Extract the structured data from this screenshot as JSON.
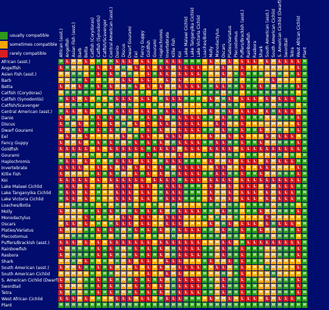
{
  "legend": [
    {
      "label": "usually compatible",
      "color": "#2f9a1c"
    },
    {
      "label": "sometimes compatible",
      "color": "#f5a500"
    },
    {
      "label": "rarely compatible",
      "color": "#d81f1f"
    }
  ],
  "colors": {
    "background": "#000c6e",
    "H": "#2f9a1c",
    "M": "#f5a500",
    "L": "#d81f1f"
  },
  "species": [
    "African (asst.)",
    "Angelfish",
    "Asian Fish (asst.)",
    "Barb",
    "Betta",
    "Catfish (Corydoras)",
    "Catfish (Synodontis)",
    "Catfish/Scavenger",
    "Central American (asst.)",
    "Danio",
    "Discus",
    "Dwarf Gourami",
    "Eel",
    "Fancy Guppy",
    "Goldfish",
    "Gourami",
    "Haplochromis",
    "Invertebrate",
    "Killie Fish",
    "Koi",
    "Lake Malawi Cichlid",
    "Lake Tanganyika Cichlid",
    "Lake Victoria Cichlid",
    "Loaches/Botia",
    "Molly",
    "Monodactylus",
    "Oscars",
    "Platies/Variatus",
    "Plecostomus",
    "Puffers/Brackish (asst.)",
    "Rainbowfish",
    "Rasbora",
    "Shark",
    "South American (asst.)",
    "South American Cichlid",
    "S. American Cichlid (Dwarf)",
    "Swordtail",
    "Tetra",
    "West African Cichlid",
    "Plant"
  ],
  "matrix": [
    "HLMMLMHMHLLLMLLMHLLLHHHMLMMLMLLLMLMLLLLH",
    "LHMMMHLMLMHMLMLMLLMLLLLMMMLMMLMMMMMMMMLH",
    "MMHHMHLHLHMHMMLHLLMLLLLHMMLMHLHHHMMHMHLH",
    "MMHHLHMHMMLLMLLMMLMLMMMHMMMMHMHHMMLMMMMH",
    "LMMLHHLHLMMHLMLMLMMLLLLHHLLHHLHHLHMHHHLH",
    "MHHHHHMHMHHHMHMHMMHMMMMHHHMHHMHHHHHHHHMH",
    "HLLMLMHMHLLLMLLMHLLLHHHMLMHLMLLLMLMLLLHH",
    "MMHHHHMHMHMHMHMHMMHMMMMHHHMHHMHHHHMHHHMH",
    "HLLMLMHMHLLLMLLMHLLLMMMMLMHLMLLLMLHLLLMH",
    "LMHMMHLHLHMHMHLHLMHLLLLHHMLHHLHHHMMHHHLH",
    "LHMLMHLMLMHMLMLMLLMLLLLMMLLMMLMMMMMMMMLH",
    "LMHLHHLHLHMHMHLHLMMLLLLHHMLHHLHHLMMHMHLH",
    "MLMMLMMMMMLMHLLMMLLLMMMMLMMLMLMMMLMLLLMH",
    "LMMLMHLHLHMHLHLHLMHLLLLHHLLHHLHHLMMHHHLH",
    "LLLLLMLMLLLLLLHLLLLMLLLMLLLLMLLLLLLLLLLH",
    "MMHMMHMHMHMHMHLHMMMLMMMHHMMHHMHHMMMHMHMH",
    "HLLMLMHMHLLLMLLMHLLLHHHMLMMLMLLLMLMLLLHH",
    "LLLLMMLMLMLMLMLMLHMLLLLMMLLMMLMMLLMMMMLH",
    "LMMMMHLHLHMMLHLMLMHLLLLHHLLHHLHHLMMHHHLH",
    "LLLLLMLMLLLLLLMLLLLHLLLMLLLLMLLLLLLLLLLH",
    "HLLMLMHMMLLLMLLMHLLLHHHMLMMLMLLLMLMLLLHH",
    "HLLMLMHMMLLLMLLMHLLLHHHMLMMLMLLLMLMLLLHH",
    "HLLMLMHMMLLLMLLMHLLLHHHMLMMLMLLLMLMLLLHH",
    "MMHHHHMHMHMHMHMHMMHMMMMHHHMHHMHHHHMHHHMH",
    "LMMMHHLHLHMHLHLHLMHLLLLHHMLHHMHHLMMHHHLH",
    "MMMMLHMHMMLLMLLMMLLLMMMHMHMMHMMMMLMMMMMH",
    "MLLMLMHMHLLLMLLMMLLLMMMMLMHLMLLLMLHLLLMH",
    "LMMMHHLHLHMHLHLHLMHLLLLHHMLHHLHHLMMHHHLH",
    "MMHHHHMHMHMHMHMHMMHMMMMHHHMHHMHHHHMHHHMH",
    "LLLMLMLMLLLLLLLMLLLLLLLMMMLLMHLLLLLLLLLH",
    "LMHHHHLHLHMHLHLHLMHLLLLHHMLHHLHHHMMHHHLH",
    "LMHHHHLHLHMHLHLHLMHLLLLHHMLHHLHHHMMHHHLH",
    "MMHMLHMHMHMLMLLMMLLLMMMHLMMLHLHHHMMMMMMH",
    "LMMLHHLHLMMMLMLMLMMLLLLHMLLMHLMMMHMMMMLH",
    "MMMMMHMHHMMMMMLMMLMLMMMHMMHMHLMMMMHMMMMH",
    "LMHMHHLHLHMHLHLHLMHLLLLHHMLHHLHHMMMHHHLH",
    "LMMMHHLHLHMMLHLMLMHLLLLHHMLHHLHHMMMHHHLH",
    "LMHMHHLHLHMHLHLHLMHLLLLHHMLHHLHHMMMHHHLH",
    "LLLMLMHMMLLLMLLMHLLLHHHMLMMLMLLLMLMLLLHH",
    "HHHHHHHHHHHHHHHHHHHHHHHHHHHHHHHHHHHHHHHH"
  ]
}
